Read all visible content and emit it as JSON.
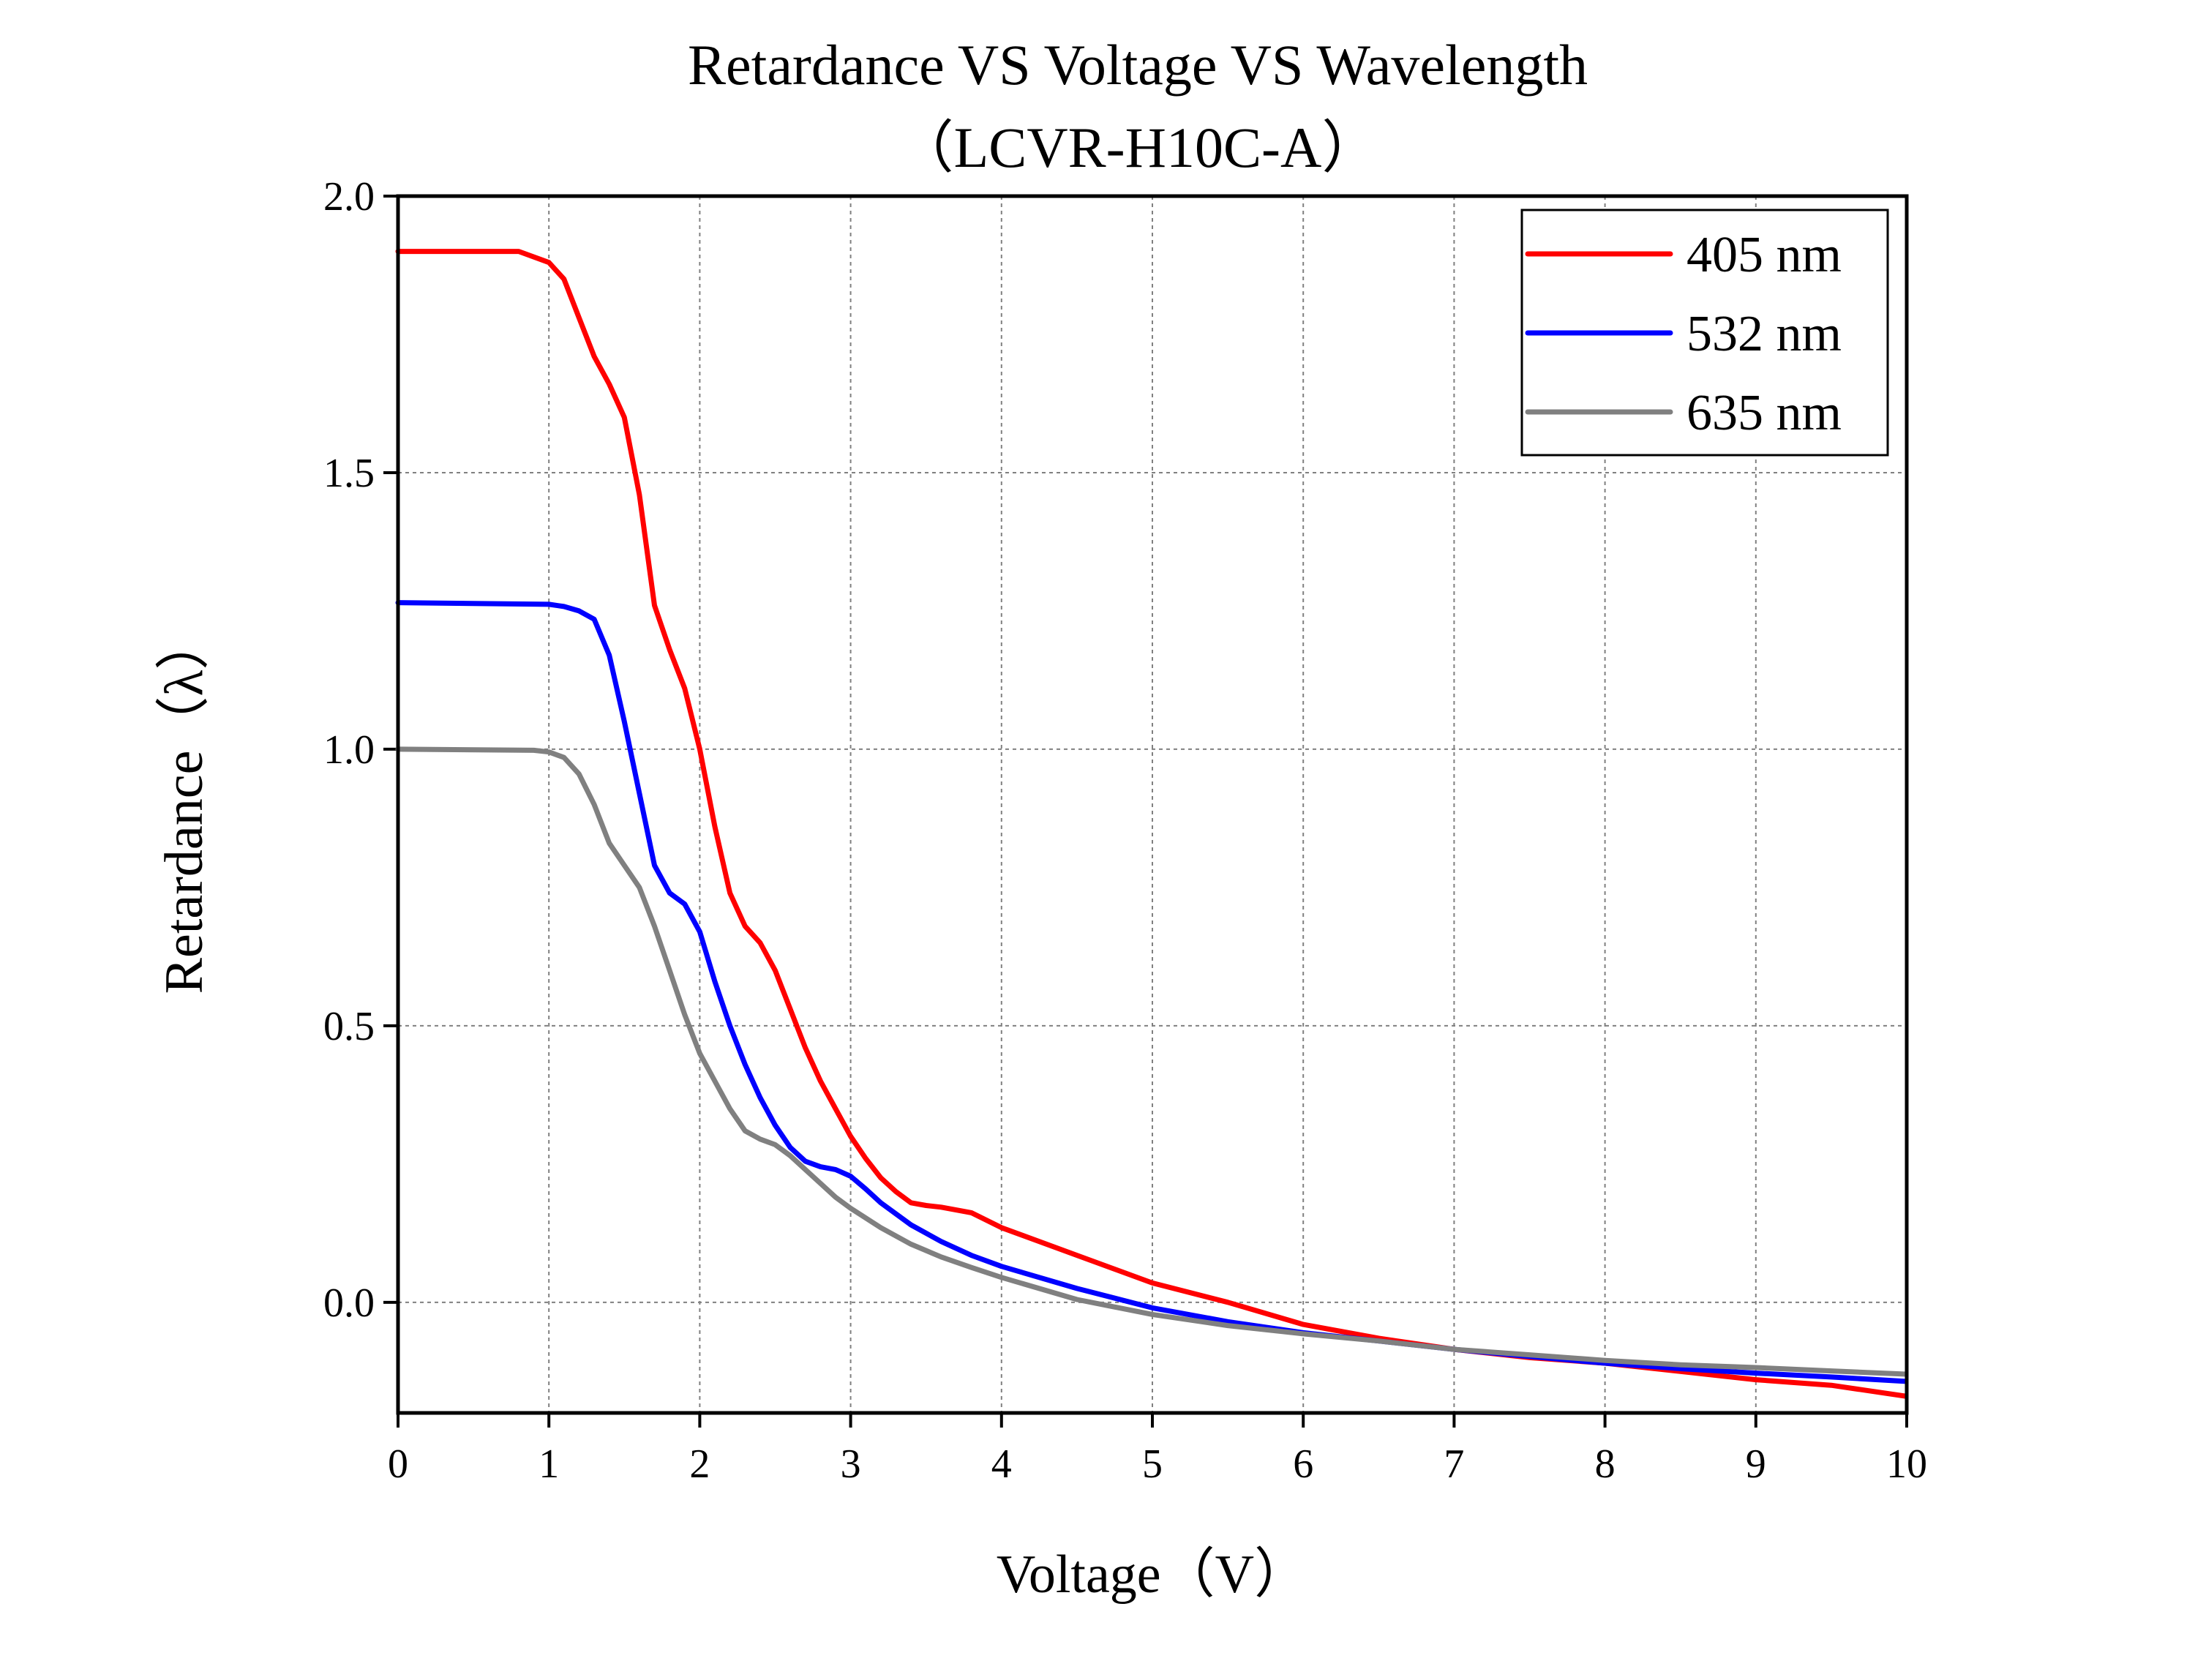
{
  "chart_data": {
    "type": "line",
    "title": "Retardance VS Voltage VS Wavelength",
    "subtitle": "（LCVR-H10C-A）",
    "xlabel": "Voltage（V）",
    "ylabel": "Retardance（λ）",
    "xlim": [
      0,
      10
    ],
    "ylim": [
      -0.2,
      2.0
    ],
    "xticks": [
      "0",
      "1",
      "2",
      "3",
      "4",
      "5",
      "6",
      "7",
      "8",
      "9",
      "10"
    ],
    "yticks": [
      "0.0",
      "0.5",
      "1.0",
      "1.5",
      "2.0"
    ],
    "grid": true,
    "legend_position": "top-right",
    "series": [
      {
        "name": "405 nm",
        "color": "#ff0000",
        "x": [
          0,
          0.8,
          1.0,
          1.1,
          1.2,
          1.3,
          1.4,
          1.5,
          1.6,
          1.7,
          1.8,
          1.9,
          2.0,
          2.1,
          2.2,
          2.3,
          2.4,
          2.5,
          2.6,
          2.7,
          2.8,
          2.9,
          3.0,
          3.1,
          3.2,
          3.3,
          3.4,
          3.5,
          3.6,
          3.8,
          4.0,
          4.5,
          5.0,
          5.5,
          6.0,
          6.5,
          7.0,
          7.5,
          8.0,
          8.5,
          9.0,
          9.5,
          10.0
        ],
        "y": [
          1.9,
          1.9,
          1.88,
          1.85,
          1.78,
          1.71,
          1.66,
          1.6,
          1.46,
          1.26,
          1.18,
          1.11,
          1.0,
          0.86,
          0.74,
          0.68,
          0.65,
          0.6,
          0.53,
          0.46,
          0.4,
          0.35,
          0.3,
          0.26,
          0.225,
          0.2,
          0.18,
          0.175,
          0.172,
          0.162,
          0.135,
          0.085,
          0.035,
          0.0,
          -0.04,
          -0.065,
          -0.085,
          -0.1,
          -0.11,
          -0.125,
          -0.14,
          -0.15,
          -0.17
        ]
      },
      {
        "name": "532 nm",
        "color": "#0000ff",
        "x": [
          0,
          1.0,
          1.1,
          1.2,
          1.3,
          1.4,
          1.5,
          1.6,
          1.7,
          1.8,
          1.9,
          2.0,
          2.1,
          2.2,
          2.3,
          2.4,
          2.5,
          2.6,
          2.7,
          2.8,
          2.9,
          3.0,
          3.1,
          3.2,
          3.4,
          3.6,
          3.8,
          4.0,
          4.5,
          5.0,
          5.5,
          6.0,
          6.5,
          7.0,
          7.5,
          8.0,
          8.5,
          9.0,
          9.5,
          10.0
        ],
        "y": [
          1.265,
          1.262,
          1.258,
          1.25,
          1.235,
          1.17,
          1.05,
          0.92,
          0.79,
          0.74,
          0.72,
          0.67,
          0.58,
          0.5,
          0.43,
          0.37,
          0.32,
          0.28,
          0.255,
          0.245,
          0.24,
          0.228,
          0.205,
          0.18,
          0.14,
          0.11,
          0.085,
          0.065,
          0.025,
          -0.01,
          -0.035,
          -0.055,
          -0.07,
          -0.085,
          -0.098,
          -0.11,
          -0.12,
          -0.128,
          -0.135,
          -0.143
        ]
      },
      {
        "name": "635 nm",
        "color": "#808080",
        "x": [
          0,
          0.9,
          1.0,
          1.1,
          1.2,
          1.3,
          1.4,
          1.5,
          1.6,
          1.7,
          1.8,
          1.9,
          2.0,
          2.1,
          2.2,
          2.3,
          2.4,
          2.5,
          2.6,
          2.7,
          2.8,
          2.9,
          3.0,
          3.2,
          3.4,
          3.6,
          3.8,
          4.0,
          4.5,
          5.0,
          5.5,
          6.0,
          6.5,
          7.0,
          7.5,
          8.0,
          8.5,
          9.0,
          9.5,
          10.0
        ],
        "y": [
          1.0,
          0.998,
          0.995,
          0.985,
          0.955,
          0.9,
          0.83,
          0.79,
          0.75,
          0.68,
          0.6,
          0.52,
          0.45,
          0.4,
          0.35,
          0.31,
          0.295,
          0.285,
          0.265,
          0.24,
          0.215,
          0.19,
          0.17,
          0.135,
          0.105,
          0.082,
          0.063,
          0.045,
          0.005,
          -0.022,
          -0.042,
          -0.057,
          -0.07,
          -0.085,
          -0.095,
          -0.105,
          -0.113,
          -0.118,
          -0.124,
          -0.13
        ]
      }
    ]
  }
}
